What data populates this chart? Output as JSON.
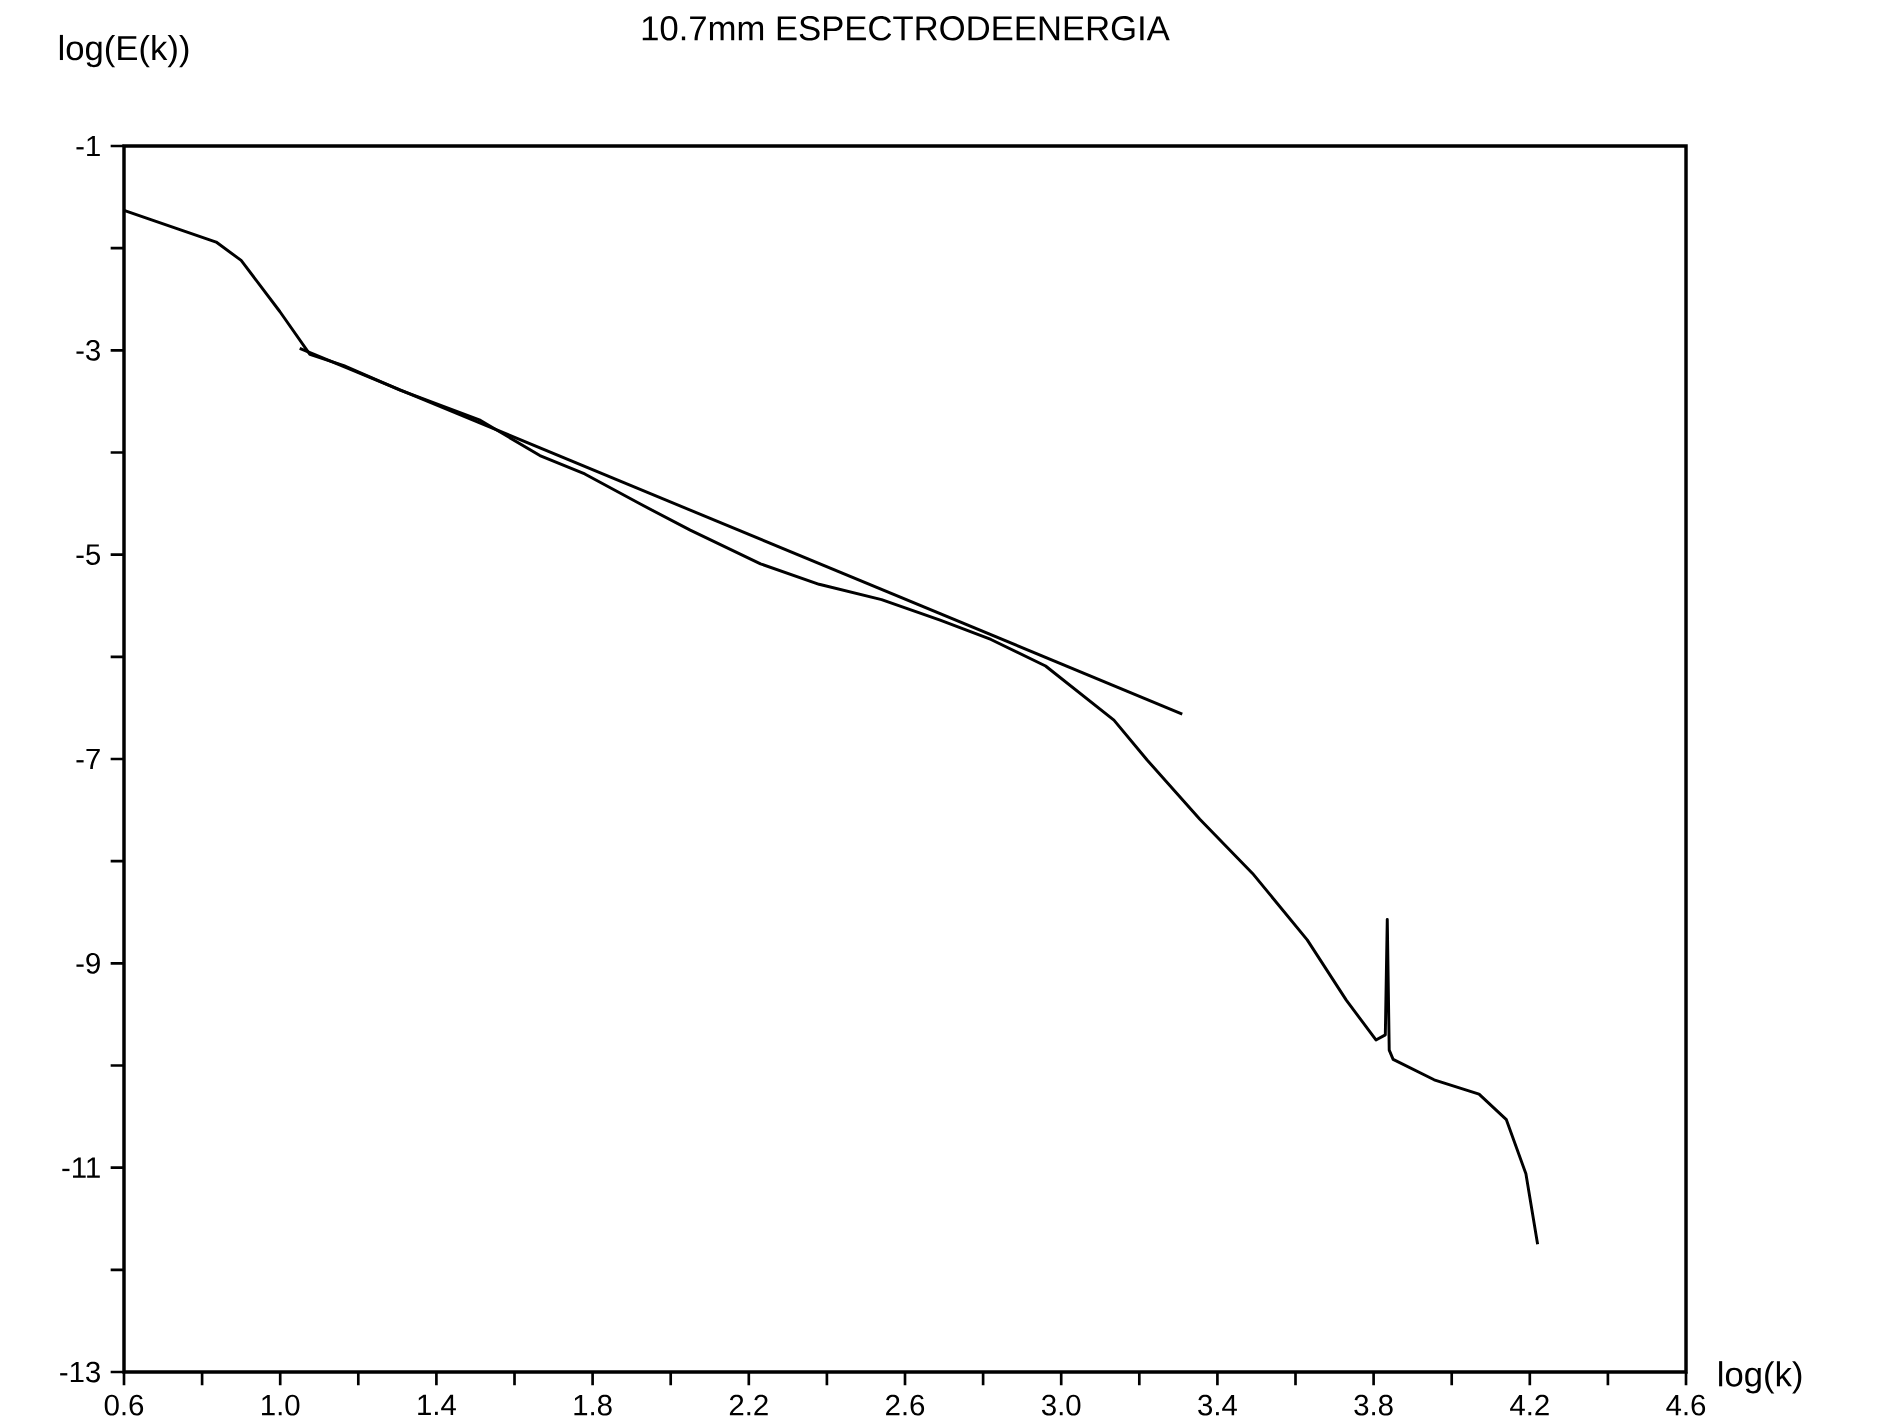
{
  "chart_data": {
    "type": "line",
    "title": "10.7mm ESPECTRODEENERGIA",
    "xlabel": "log(k)",
    "ylabel": "log(E(k))",
    "xlim": [
      0.6,
      4.6
    ],
    "ylim": [
      -13,
      -1
    ],
    "xticks": [
      0.6,
      {
        "value": 0.8,
        "label": null
      },
      {
        "value": 1.0,
        "label": "1.0"
      },
      {
        "value": 1.2,
        "label": null
      },
      1.4,
      {
        "value": 1.6,
        "label": null
      },
      1.8,
      {
        "value": 2.0,
        "label": null
      },
      2.2,
      {
        "value": 2.4,
        "label": null
      },
      2.6,
      {
        "value": 2.8,
        "label": null
      },
      {
        "value": 3.0,
        "label": "3.0"
      },
      {
        "value": 3.2,
        "label": null
      },
      3.4,
      {
        "value": 3.6,
        "label": null
      },
      3.8,
      {
        "value": 4.0,
        "label": null
      },
      4.2,
      {
        "value": 4.4,
        "label": null
      },
      4.6
    ],
    "yticks": [
      -13,
      {
        "value": -12,
        "label": null
      },
      -11,
      {
        "value": -10,
        "label": null
      },
      -9,
      {
        "value": -8,
        "label": null
      },
      -7,
      {
        "value": -6,
        "label": null
      },
      -5,
      {
        "value": -4,
        "label": null
      },
      -3,
      {
        "value": -2,
        "label": null
      },
      -1
    ],
    "grid": false,
    "marker": "none",
    "line_style": "solid",
    "series": [
      {
        "color": "#000000",
        "x": [
          0.6,
          0.836,
          0.9,
          0.999,
          1.076,
          1.163,
          1.307,
          1.51,
          1.665,
          1.78,
          1.92,
          2.05,
          2.23,
          2.38,
          2.54,
          2.69,
          2.82,
          2.96,
          3.135,
          3.22,
          3.355,
          3.49,
          3.63,
          3.73,
          3.806,
          3.83,
          3.835,
          3.84,
          3.85,
          3.955,
          4.07,
          4.14,
          4.19,
          4.22
        ],
        "values": [
          -1.63,
          -1.94,
          -2.12,
          -2.62,
          -3.04,
          -3.15,
          -3.39,
          -3.68,
          -4.03,
          -4.21,
          -4.5,
          -4.76,
          -5.09,
          -5.29,
          -5.44,
          -5.64,
          -5.83,
          -6.09,
          -6.62,
          -7.01,
          -7.59,
          -8.12,
          -8.77,
          -9.36,
          -9.75,
          -9.7,
          -8.57,
          -9.85,
          -9.94,
          -10.14,
          -10.28,
          -10.53,
          -11.06,
          -11.75
        ]
      },
      {
        "color": "#000000",
        "x": [
          1.05,
          3.31
        ],
        "values": [
          -2.98,
          -6.56
        ]
      }
    ]
  }
}
